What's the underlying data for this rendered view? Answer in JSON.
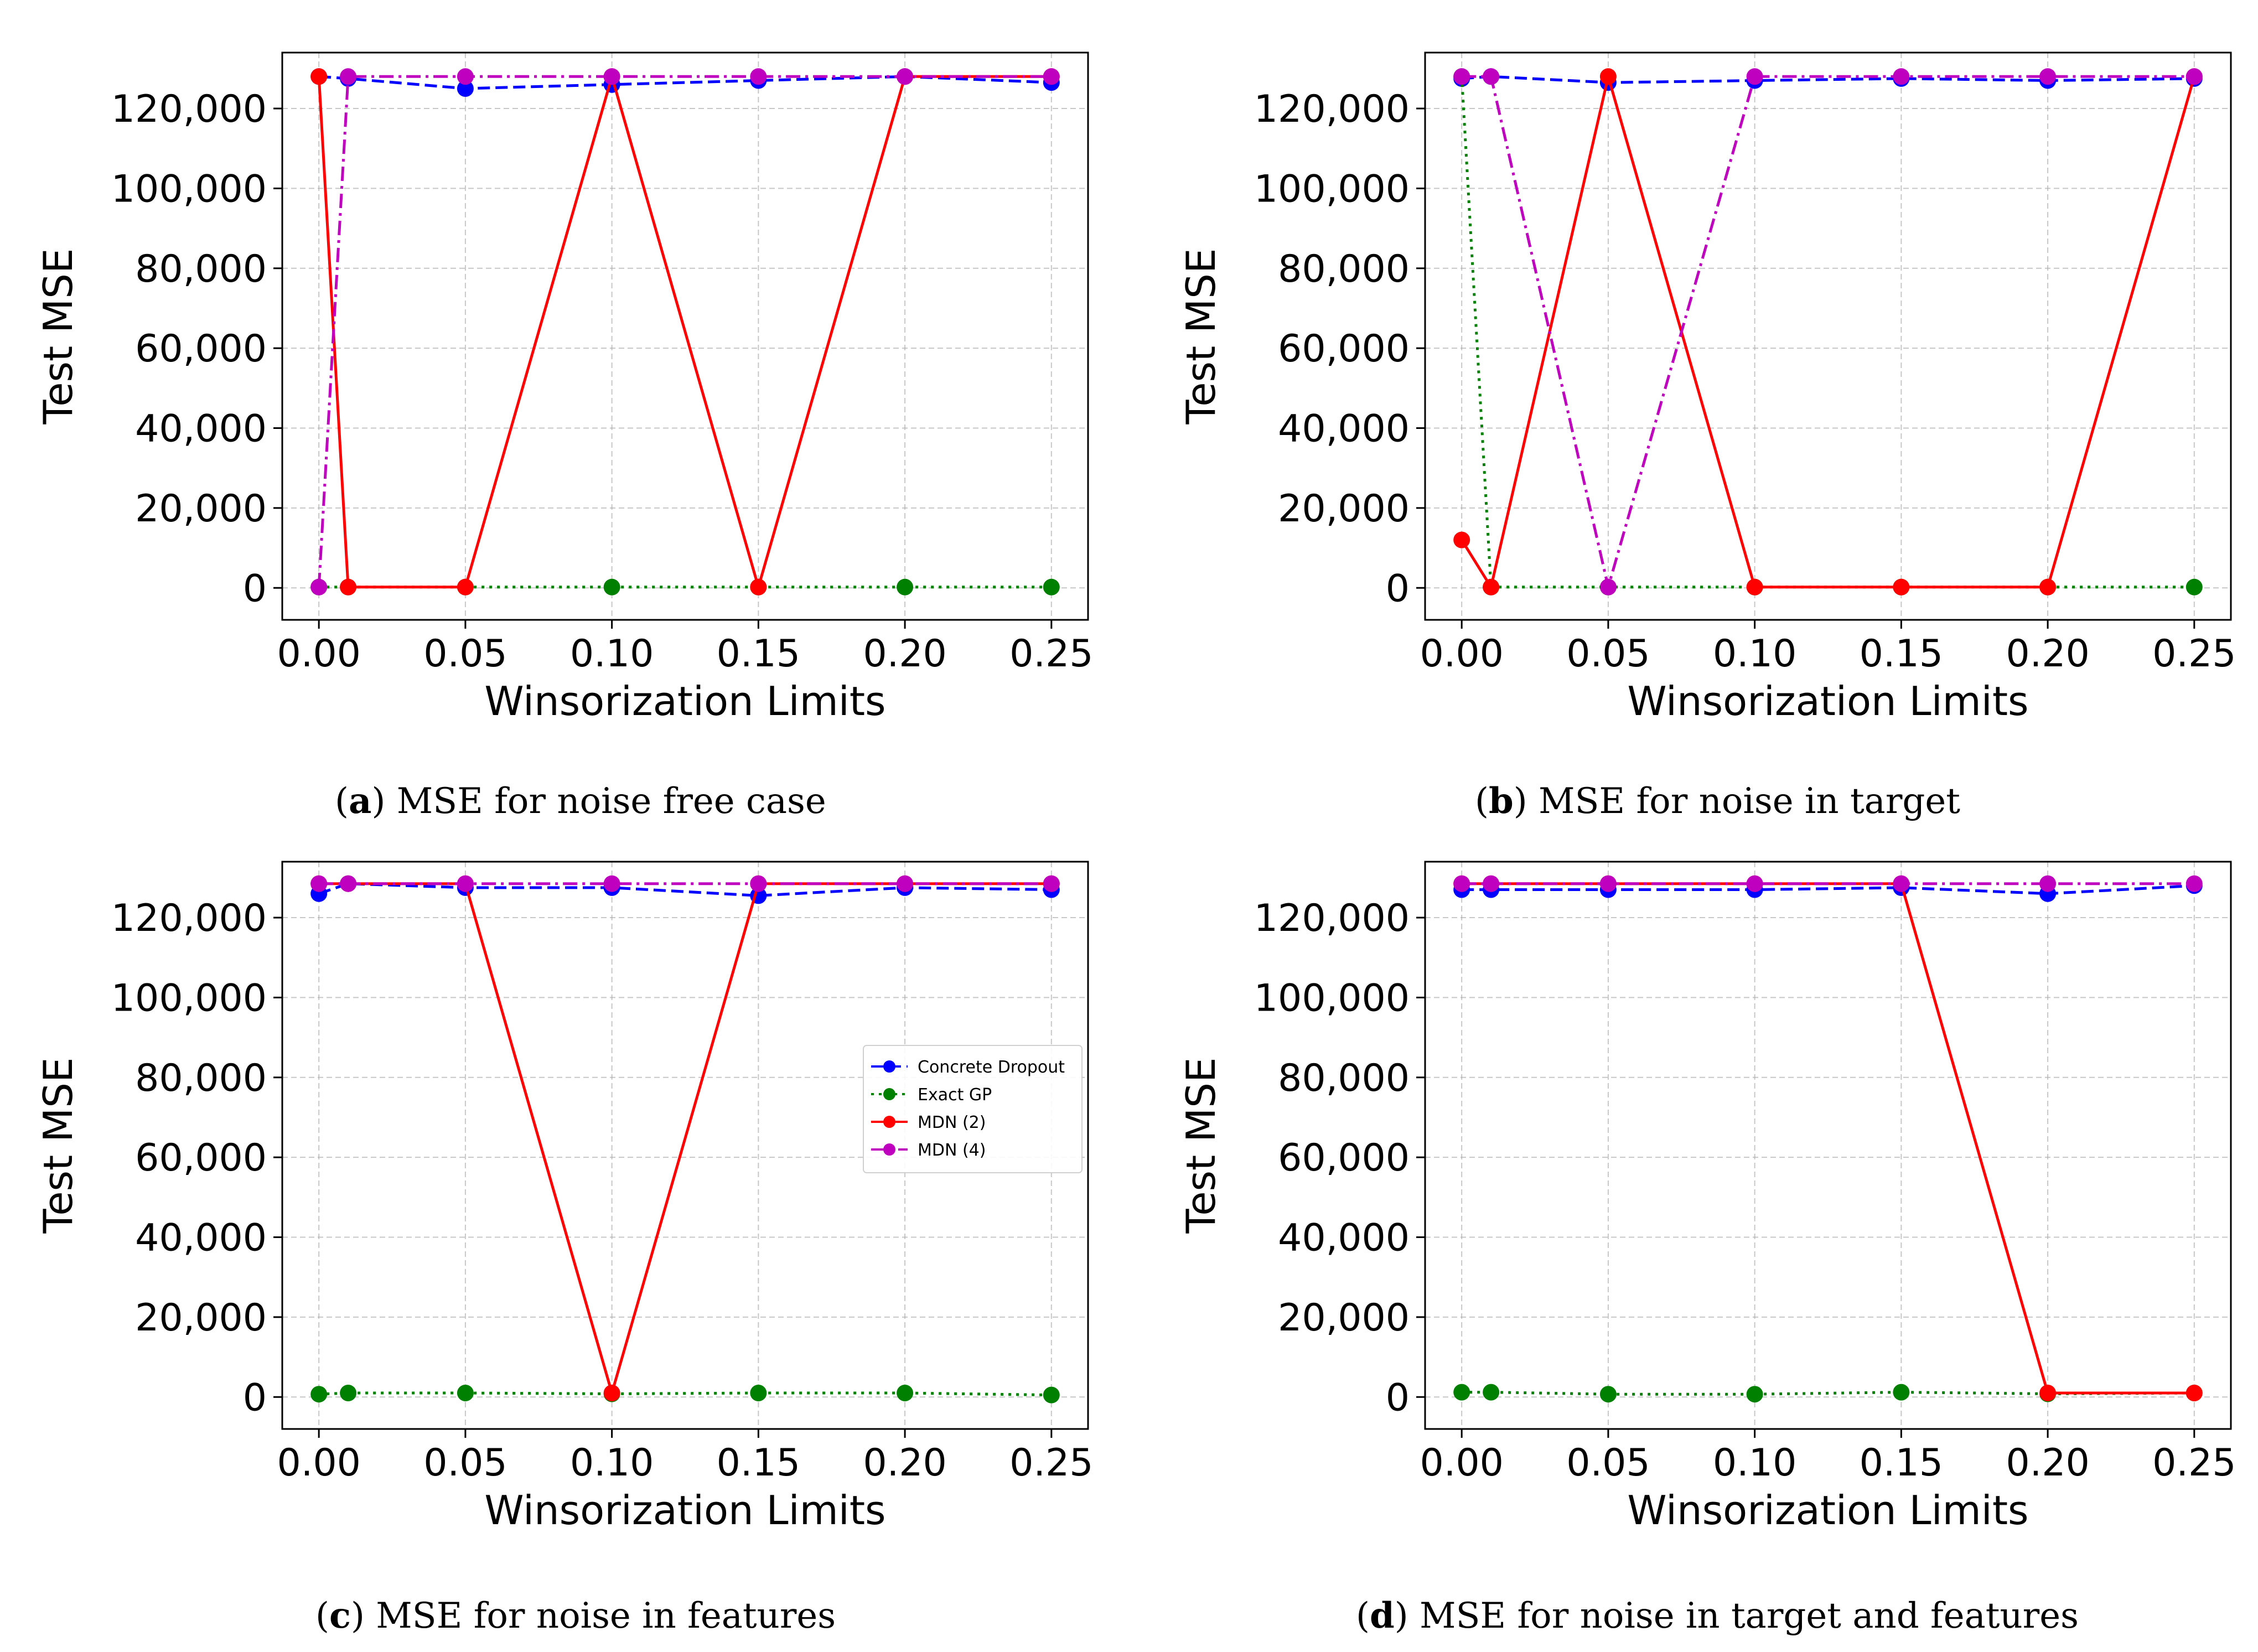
{
  "chart_data": [
    {
      "id": "a",
      "type": "line",
      "caption_letter": "a",
      "caption_text": "MSE for noise free case",
      "xlabel": "Winsorization Limits",
      "ylabel": "Test MSE",
      "xlim": [
        -0.0125,
        0.2625
      ],
      "ylim": [
        -8000,
        134000
      ],
      "xticks": [
        0.0,
        0.05,
        0.1,
        0.15,
        0.2,
        0.25
      ],
      "xtick_labels": [
        "0.00",
        "0.05",
        "0.10",
        "0.15",
        "0.20",
        "0.25"
      ],
      "yticks": [
        0,
        20000,
        40000,
        60000,
        80000,
        100000,
        120000
      ],
      "ytick_labels": [
        "0",
        "20,000",
        "40,000",
        "60,000",
        "80,000",
        "100,000",
        "120,000"
      ],
      "grid": true,
      "x": [
        0.0,
        0.01,
        0.05,
        0.1,
        0.15,
        0.2,
        0.25
      ],
      "series": [
        {
          "name": "Concrete Dropout",
          "color": "#0000ff",
          "style": "dashed",
          "values": [
            128000,
            127500,
            125000,
            126000,
            127000,
            128000,
            126500
          ]
        },
        {
          "name": "Exact GP",
          "color": "#008000",
          "style": "dotted",
          "values": [
            200,
            200,
            200,
            200,
            200,
            200,
            200
          ]
        },
        {
          "name": "MDN (2)",
          "color": "#ff0000",
          "style": "solid",
          "values": [
            128000,
            200,
            200,
            128000,
            200,
            128000,
            128000
          ]
        },
        {
          "name": "MDN (4)",
          "color": "#bf00bf",
          "style": "dashdot",
          "values": [
            200,
            128000,
            128000,
            128000,
            128000,
            128000,
            128000
          ]
        }
      ]
    },
    {
      "id": "b",
      "type": "line",
      "caption_letter": "b",
      "caption_text": "MSE for noise in target",
      "xlabel": "Winsorization Limits",
      "ylabel": "Test MSE",
      "xlim": [
        -0.0125,
        0.2625
      ],
      "ylim": [
        -8000,
        134000
      ],
      "xticks": [
        0.0,
        0.05,
        0.1,
        0.15,
        0.2,
        0.25
      ],
      "xtick_labels": [
        "0.00",
        "0.05",
        "0.10",
        "0.15",
        "0.20",
        "0.25"
      ],
      "yticks": [
        0,
        20000,
        40000,
        60000,
        80000,
        100000,
        120000
      ],
      "ytick_labels": [
        "0",
        "20,000",
        "40,000",
        "60,000",
        "80,000",
        "100,000",
        "120,000"
      ],
      "grid": true,
      "x": [
        0.0,
        0.01,
        0.05,
        0.1,
        0.15,
        0.2,
        0.25
      ],
      "series": [
        {
          "name": "Concrete Dropout",
          "color": "#0000ff",
          "style": "dashed",
          "values": [
            127500,
            128000,
            126500,
            127000,
            127500,
            127000,
            127500
          ]
        },
        {
          "name": "Exact GP",
          "color": "#008000",
          "style": "dotted",
          "values": [
            128000,
            200,
            200,
            200,
            200,
            200,
            200
          ]
        },
        {
          "name": "MDN (2)",
          "color": "#ff0000",
          "style": "solid",
          "values": [
            12000,
            200,
            128000,
            200,
            200,
            200,
            128000
          ]
        },
        {
          "name": "MDN (4)",
          "color": "#bf00bf",
          "style": "dashdot",
          "values": [
            128000,
            128000,
            200,
            128000,
            128000,
            128000,
            128000
          ]
        }
      ]
    },
    {
      "id": "c",
      "type": "line",
      "caption_letter": "c",
      "caption_text": "MSE for noise in features",
      "xlabel": "Winsorization Limits",
      "ylabel": "Test MSE",
      "xlim": [
        -0.0125,
        0.2625
      ],
      "ylim": [
        -8000,
        134000
      ],
      "xticks": [
        0.0,
        0.05,
        0.1,
        0.15,
        0.2,
        0.25
      ],
      "xtick_labels": [
        "0.00",
        "0.05",
        "0.10",
        "0.15",
        "0.20",
        "0.25"
      ],
      "yticks": [
        0,
        20000,
        40000,
        60000,
        80000,
        100000,
        120000
      ],
      "ytick_labels": [
        "0",
        "20,000",
        "40,000",
        "60,000",
        "80,000",
        "100,000",
        "120,000"
      ],
      "grid": true,
      "legend": {
        "placement": "right",
        "entries": [
          "Concrete Dropout",
          "Exact GP",
          "MDN (2)",
          "MDN (4)"
        ]
      },
      "x": [
        0.0,
        0.01,
        0.05,
        0.1,
        0.15,
        0.2,
        0.25
      ],
      "series": [
        {
          "name": "Concrete Dropout",
          "color": "#0000ff",
          "style": "dashed",
          "values": [
            126000,
            128500,
            127500,
            127500,
            125500,
            127500,
            127000
          ]
        },
        {
          "name": "Exact GP",
          "color": "#008000",
          "style": "dotted",
          "values": [
            700,
            1000,
            1000,
            800,
            1000,
            1000,
            500
          ]
        },
        {
          "name": "MDN (2)",
          "color": "#ff0000",
          "style": "solid",
          "values": [
            128500,
            128500,
            128500,
            1000,
            128500,
            128500,
            128500
          ]
        },
        {
          "name": "MDN (4)",
          "color": "#bf00bf",
          "style": "dashdot",
          "values": [
            128500,
            128500,
            128500,
            128500,
            128500,
            128500,
            128500
          ]
        }
      ]
    },
    {
      "id": "d",
      "type": "line",
      "caption_letter": "d",
      "caption_text": "MSE for noise in target and features",
      "xlabel": "Winsorization Limits",
      "ylabel": "Test MSE",
      "xlim": [
        -0.0125,
        0.2625
      ],
      "ylim": [
        -8000,
        134000
      ],
      "xticks": [
        0.0,
        0.05,
        0.1,
        0.15,
        0.2,
        0.25
      ],
      "xtick_labels": [
        "0.00",
        "0.05",
        "0.10",
        "0.15",
        "0.20",
        "0.25"
      ],
      "yticks": [
        0,
        20000,
        40000,
        60000,
        80000,
        100000,
        120000
      ],
      "ytick_labels": [
        "0",
        "20,000",
        "40,000",
        "60,000",
        "80,000",
        "100,000",
        "120,000"
      ],
      "grid": true,
      "x": [
        0.0,
        0.01,
        0.05,
        0.1,
        0.15,
        0.2,
        0.25
      ],
      "series": [
        {
          "name": "Concrete Dropout",
          "color": "#0000ff",
          "style": "dashed",
          "values": [
            127000,
            127000,
            127000,
            127000,
            127500,
            126000,
            128000
          ]
        },
        {
          "name": "Exact GP",
          "color": "#008000",
          "style": "dotted",
          "values": [
            1200,
            1200,
            700,
            700,
            1200,
            800,
            1000
          ]
        },
        {
          "name": "MDN (2)",
          "color": "#ff0000",
          "style": "solid",
          "values": [
            128500,
            128500,
            128500,
            128500,
            128500,
            1000,
            1000
          ]
        },
        {
          "name": "MDN (4)",
          "color": "#bf00bf",
          "style": "dashdot",
          "values": [
            128500,
            128500,
            128500,
            128500,
            128500,
            128500,
            128500
          ]
        }
      ]
    }
  ]
}
